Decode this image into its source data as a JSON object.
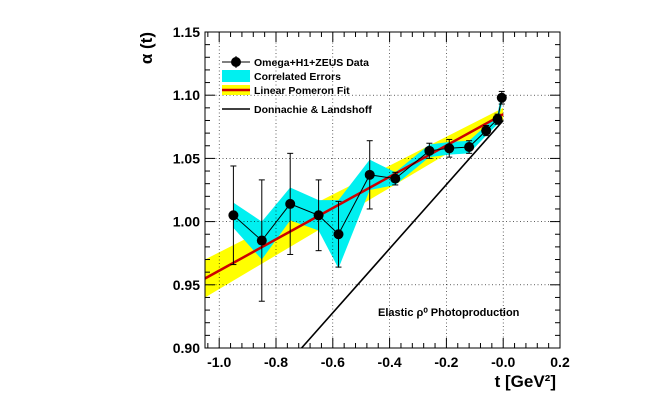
{
  "chart_data": {
    "type": "scatter",
    "xlabel": "t [GeV²]",
    "ylabel": "α (t)",
    "xlim": [
      -1.05,
      0.2
    ],
    "ylim": [
      0.9,
      1.15
    ],
    "grid": true,
    "x_ticks": [
      -1.0,
      -0.8,
      -0.6,
      -0.4,
      -0.2,
      0.0,
      0.2
    ],
    "x_tick_labels": [
      "-1.0",
      "-0.8",
      "-0.6",
      "-0.4",
      "-0.2",
      "-0.0",
      "0.2"
    ],
    "y_ticks": [
      0.9,
      0.95,
      1.0,
      1.05,
      1.1,
      1.15
    ],
    "y_tick_labels": [
      "0.90",
      "0.95",
      "1.00",
      "1.05",
      "1.10",
      "1.15"
    ],
    "annotation": "Elastic ρ⁰ Photoproduction",
    "legend_position": "top-left",
    "series": [
      {
        "name": "Omega+H1+ZEUS Data",
        "kind": "points",
        "color": "#000000",
        "x": [
          -0.95,
          -0.85,
          -0.75,
          -0.65,
          -0.58,
          -0.47,
          -0.38,
          -0.26,
          -0.19,
          -0.12,
          -0.06,
          -0.02,
          -0.005
        ],
        "y": [
          1.005,
          0.985,
          1.014,
          1.005,
          0.99,
          1.037,
          1.034,
          1.056,
          1.058,
          1.059,
          1.072,
          1.081,
          1.098
        ],
        "yerr": [
          0.039,
          0.048,
          0.04,
          0.028,
          0.026,
          0.027,
          0.005,
          0.006,
          0.007,
          0.005,
          0.004,
          0.004,
          0.005
        ]
      },
      {
        "name": "Correlated Errors",
        "kind": "band",
        "color": "#00f0f0",
        "x": [
          -0.95,
          -0.85,
          -0.75,
          -0.65,
          -0.58,
          -0.47,
          -0.38,
          -0.26,
          -0.19,
          -0.12,
          -0.06,
          -0.02,
          -0.005
        ],
        "lower": [
          0.995,
          0.97,
          1.001,
          0.993,
          0.963,
          1.025,
          1.029,
          1.051,
          1.053,
          1.054,
          1.068,
          1.077,
          1.093
        ],
        "upper": [
          1.015,
          1.0,
          1.027,
          1.017,
          1.017,
          1.049,
          1.039,
          1.061,
          1.063,
          1.064,
          1.076,
          1.085,
          1.103
        ]
      },
      {
        "name": "Linear Pomeron Fit",
        "kind": "line",
        "color": "#cc0000",
        "x": [
          -1.05,
          0.0
        ],
        "y": [
          0.955,
          1.085
        ]
      },
      {
        "name": "Fit uncertainty",
        "kind": "band",
        "color": "#ffff00",
        "legend": false,
        "x": [
          -1.05,
          0.0
        ],
        "lower": [
          0.94,
          1.08
        ],
        "upper": [
          0.97,
          1.09
        ]
      },
      {
        "name": "Donnachie & Landshoff",
        "kind": "line",
        "color": "#000000",
        "x": [
          -0.71,
          0.0
        ],
        "y": [
          0.9,
          1.08
        ]
      }
    ]
  },
  "colors": {
    "frame": "#000000",
    "data_points": "#000000",
    "correlated_band": "#00f0f0",
    "fit_band": "#ffff00",
    "fit_line": "#cc0000",
    "dl_line": "#000000"
  }
}
